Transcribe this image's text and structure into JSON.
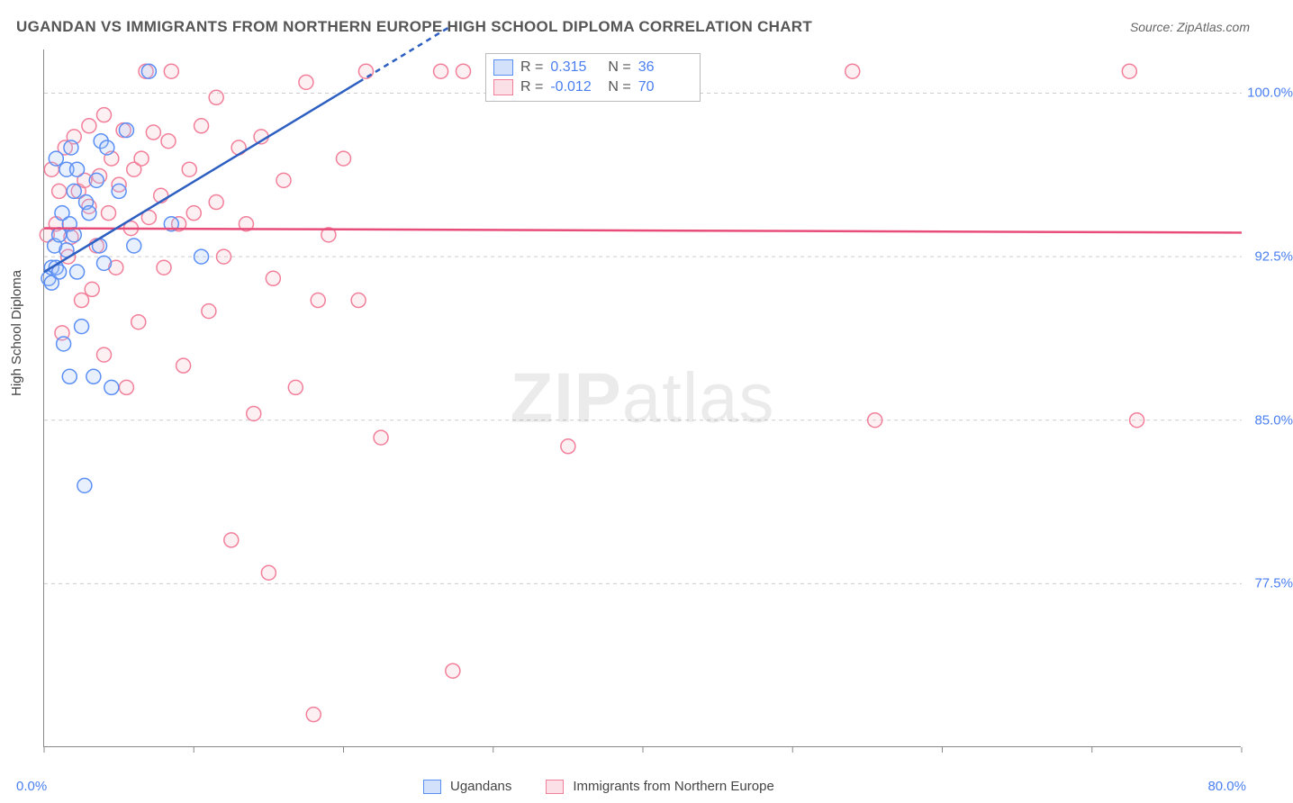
{
  "title": "UGANDAN VS IMMIGRANTS FROM NORTHERN EUROPE HIGH SCHOOL DIPLOMA CORRELATION CHART",
  "source": "Source: ZipAtlas.com",
  "ylabel": "High School Diploma",
  "watermark": {
    "bold": "ZIP",
    "rest": "atlas"
  },
  "chart": {
    "type": "scatter",
    "xlim": [
      0,
      80
    ],
    "ylim": [
      70,
      102
    ],
    "x_ticks": [
      0,
      10,
      20,
      30,
      40,
      50,
      60,
      70,
      80
    ],
    "x_tick_labels_shown": {
      "start": "0.0%",
      "end": "80.0%"
    },
    "y_gridlines": [
      77.5,
      85.0,
      92.5,
      100.0
    ],
    "y_tick_labels": [
      "77.5%",
      "85.0%",
      "92.5%",
      "100.0%"
    ],
    "grid_color": "#cccccc",
    "axis_color": "#888888",
    "background_color": "#ffffff",
    "marker_radius": 8,
    "marker_fill_opacity": 0.25,
    "marker_stroke_width": 1.5,
    "tick_label_color": "#4a7ff0",
    "tick_label_fontsize": 15
  },
  "series": {
    "ugandans": {
      "label": "Ugandans",
      "color_stroke": "#5b8ff5",
      "color_fill": "#a9c3f7",
      "R": "0.315",
      "N": "36",
      "trend": {
        "x1": 0,
        "y1": 91.8,
        "x2": 21,
        "y2": 100.5,
        "color": "#2c5fc1",
        "width": 2.5,
        "dash_extension": {
          "x1": 21,
          "y1": 100.5,
          "x2": 27,
          "y2": 103
        }
      },
      "points": [
        [
          0.3,
          91.5
        ],
        [
          0.5,
          92.0
        ],
        [
          0.5,
          91.3
        ],
        [
          0.7,
          93.0
        ],
        [
          0.8,
          92.0
        ],
        [
          0.8,
          97.0
        ],
        [
          1.0,
          91.8
        ],
        [
          1.0,
          93.5
        ],
        [
          1.2,
          94.5
        ],
        [
          1.3,
          88.5
        ],
        [
          1.5,
          96.5
        ],
        [
          1.5,
          92.8
        ],
        [
          1.7,
          87.0
        ],
        [
          1.7,
          94.0
        ],
        [
          1.8,
          97.5
        ],
        [
          2.0,
          93.5
        ],
        [
          2.0,
          95.5
        ],
        [
          2.2,
          91.8
        ],
        [
          2.2,
          96.5
        ],
        [
          2.5,
          89.3
        ],
        [
          2.7,
          82.0
        ],
        [
          2.8,
          95.0
        ],
        [
          3.0,
          94.5
        ],
        [
          3.3,
          87.0
        ],
        [
          3.5,
          96.0
        ],
        [
          3.7,
          93.0
        ],
        [
          3.8,
          97.8
        ],
        [
          4.0,
          92.2
        ],
        [
          4.2,
          97.5
        ],
        [
          4.5,
          86.5
        ],
        [
          5.0,
          95.5
        ],
        [
          5.5,
          98.3
        ],
        [
          6.0,
          93.0
        ],
        [
          7.0,
          101.0
        ],
        [
          8.5,
          94.0
        ],
        [
          10.5,
          92.5
        ]
      ]
    },
    "northern_europe": {
      "label": "Immigrants from Northern Europe",
      "color_stroke": "#f27f9a",
      "color_fill": "#f8c2cf",
      "R": "-0.012",
      "N": "70",
      "trend": {
        "x1": 0,
        "y1": 93.8,
        "x2": 80,
        "y2": 93.6,
        "color": "#e84d7a",
        "width": 2.5
      },
      "points": [
        [
          0.2,
          93.5
        ],
        [
          0.5,
          96.5
        ],
        [
          0.8,
          94.0
        ],
        [
          1.0,
          95.5
        ],
        [
          1.2,
          89.0
        ],
        [
          1.4,
          97.5
        ],
        [
          1.6,
          92.5
        ],
        [
          1.8,
          93.4
        ],
        [
          2.0,
          98.0
        ],
        [
          2.3,
          95.5
        ],
        [
          2.5,
          90.5
        ],
        [
          2.7,
          96.0
        ],
        [
          3.0,
          94.8
        ],
        [
          3.0,
          98.5
        ],
        [
          3.2,
          91.0
        ],
        [
          3.5,
          93.0
        ],
        [
          3.7,
          96.2
        ],
        [
          4.0,
          88.0
        ],
        [
          4.0,
          99.0
        ],
        [
          4.3,
          94.5
        ],
        [
          4.5,
          97.0
        ],
        [
          4.8,
          92.0
        ],
        [
          5.0,
          95.8
        ],
        [
          5.3,
          98.3
        ],
        [
          5.5,
          86.5
        ],
        [
          5.8,
          93.8
        ],
        [
          6.0,
          96.5
        ],
        [
          6.3,
          89.5
        ],
        [
          6.5,
          97.0
        ],
        [
          6.8,
          101.0
        ],
        [
          7.0,
          94.3
        ],
        [
          7.3,
          98.2
        ],
        [
          7.8,
          95.3
        ],
        [
          8.0,
          92.0
        ],
        [
          8.3,
          97.8
        ],
        [
          8.5,
          101.0
        ],
        [
          9.0,
          94.0
        ],
        [
          9.3,
          87.5
        ],
        [
          9.7,
          96.5
        ],
        [
          10.0,
          94.5
        ],
        [
          10.5,
          98.5
        ],
        [
          11.0,
          90.0
        ],
        [
          11.5,
          95.0
        ],
        [
          11.5,
          99.8
        ],
        [
          12.0,
          92.5
        ],
        [
          12.5,
          79.5
        ],
        [
          13.0,
          97.5
        ],
        [
          13.5,
          94.0
        ],
        [
          14.0,
          85.3
        ],
        [
          14.5,
          98.0
        ],
        [
          15.0,
          78.0
        ],
        [
          15.3,
          91.5
        ],
        [
          16.0,
          96.0
        ],
        [
          16.8,
          86.5
        ],
        [
          17.5,
          100.5
        ],
        [
          18.0,
          71.5
        ],
        [
          18.3,
          90.5
        ],
        [
          19.0,
          93.5
        ],
        [
          20.0,
          97.0
        ],
        [
          21.0,
          90.5
        ],
        [
          21.5,
          101.0
        ],
        [
          22.5,
          84.2
        ],
        [
          26.5,
          101.0
        ],
        [
          27.3,
          73.5
        ],
        [
          28.0,
          101.0
        ],
        [
          35.0,
          83.8
        ],
        [
          54.0,
          101.0
        ],
        [
          55.5,
          85.0
        ],
        [
          72.5,
          101.0
        ],
        [
          73.0,
          85.0
        ]
      ]
    }
  },
  "legend_top": {
    "R_label": "R =",
    "N_label": "N ="
  },
  "legend_bottom": {
    "position": "bottom-center"
  }
}
